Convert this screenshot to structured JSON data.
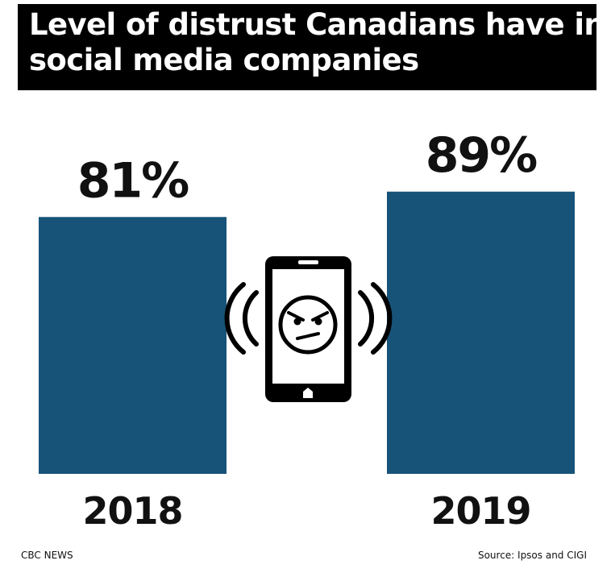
{
  "title": {
    "line1": "Level of distrust Canadians have in",
    "line2": "social media companies"
  },
  "chart_data": {
    "type": "bar",
    "title": "Level of distrust Canadians have in social media companies",
    "categories": [
      "2018",
      "2019"
    ],
    "values": [
      81,
      89
    ],
    "value_labels": [
      "81%",
      "89%"
    ],
    "unit": "%",
    "ylim": [
      0,
      100
    ],
    "grid": false,
    "legend": "none",
    "bar_color": "#175379"
  },
  "icon": "angry-phone-icon",
  "footer": {
    "left": "CBC NEWS",
    "right": "Source: Ipsos and CIGI"
  }
}
